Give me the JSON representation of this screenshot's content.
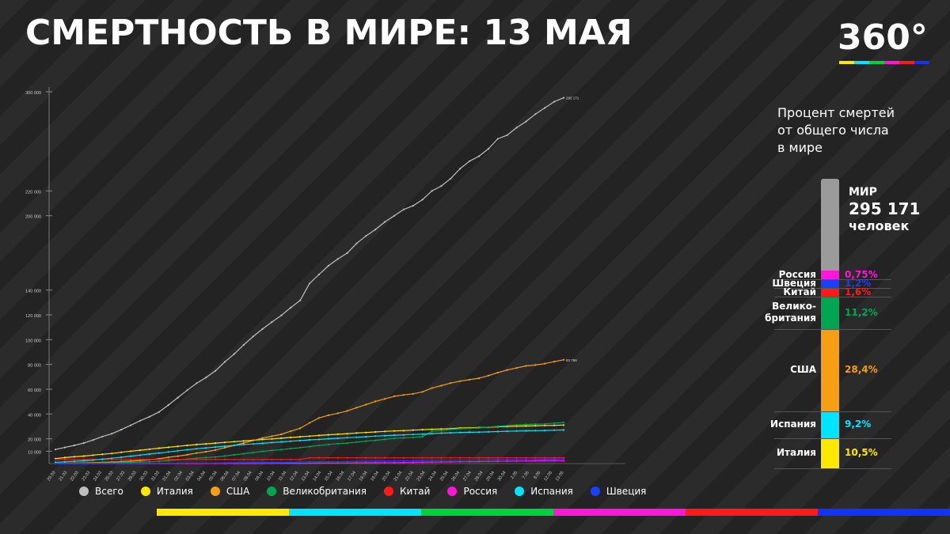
{
  "title": "СМЕРТНОСТЬ В МИРЕ: 13 МАЯ",
  "logo": "360°",
  "brand_colors": [
    "#ffe800",
    "#00e5ff",
    "#00d23c",
    "#ff16d6",
    "#ff1a1a",
    "#1133ff"
  ],
  "chart_data": {
    "type": "line",
    "title": "СМЕРТНОСТЬ В МИРЕ: 13 МАЯ",
    "x": [
      "20.03",
      "21.03",
      "22.03",
      "23.03",
      "24.03",
      "25.03",
      "26.03",
      "27.03",
      "28.03",
      "29.03",
      "30.03",
      "31.03",
      "01.04",
      "02.04",
      "03.04",
      "04.04",
      "05.04",
      "06.04",
      "07.04",
      "08.04",
      "09.04",
      "10.04",
      "11.04",
      "12.04",
      "13.04",
      "14.04",
      "15.04",
      "16.04",
      "17.04",
      "18.04",
      "19.04",
      "20.04",
      "21.04",
      "22.04",
      "23.04",
      "24.04",
      "25.04",
      "26.04",
      "27.04",
      "28.04",
      "29.04",
      "30.04",
      "01.05",
      "02.05",
      "03.05",
      "04.05",
      "05.05",
      "06.05",
      "07.05",
      "08.05",
      "09.05",
      "10.05",
      "11.05",
      "12.05",
      "13.05"
    ],
    "x_tick_labels": [
      "20.03",
      "21.03",
      "22.03",
      "23.03",
      "24.03",
      "25.03",
      "27.03",
      "29.03",
      "30.03",
      "31.03",
      "01.04",
      "02.04",
      "03.04",
      "04.04",
      "05.04",
      "06.04",
      "07.04",
      "08.04",
      "09.04",
      "10.04",
      "11.04",
      "12.04",
      "13.04",
      "14.04",
      "15.04",
      "16.04",
      "17.04",
      "18.04",
      "19.04",
      "20.04",
      "21.04",
      "22.04",
      "23.04",
      "24.04",
      "25.04",
      "26.04",
      "27.04",
      "28.04",
      "29.04",
      "30.04",
      "2.05",
      "7.05",
      "8.05",
      "12.05",
      "13.05"
    ],
    "y_ticks": [
      10000,
      20000,
      40000,
      60000,
      80000,
      100000,
      120000,
      140000,
      200000,
      220000,
      300000
    ],
    "y_tick_labels": [
      "10 000",
      "20 000",
      "40 000",
      "60 000",
      "80 000",
      "100 000",
      "120 000",
      "140 000",
      "200 000",
      "220 000",
      "300 000"
    ],
    "ylim": [
      0,
      300000
    ],
    "grid": false,
    "legend_position": "bottom",
    "series": [
      {
        "name": "Всего",
        "color": "#bfbfbf",
        "values": [
          11386,
          13024,
          14658,
          16514,
          19039,
          21831,
          24105,
          27366,
          30882,
          34622,
          37882,
          41632,
          47245,
          53262,
          59168,
          64789,
          69464,
          74824,
          82074,
          88477,
          95716,
          102538,
          108593,
          114222,
          119542,
          125826,
          131611,
          145344,
          152551,
          159578,
          165043,
          169849,
          177612,
          183719,
          188901,
          195000,
          200000,
          205000,
          208000,
          213000,
          220000,
          224000,
          230000,
          238000,
          244000,
          248000,
          254000,
          262000,
          265000,
          271000,
          276000,
          282000,
          287000,
          292000,
          295171
        ]
      },
      {
        "name": "Италия",
        "color": "#ffe800",
        "values": [
          4032,
          4825,
          5476,
          6077,
          6820,
          7503,
          8165,
          9134,
          10023,
          10779,
          11591,
          12428,
          13155,
          13915,
          14681,
          15362,
          15887,
          16523,
          17127,
          17669,
          18279,
          18849,
          19468,
          19899,
          20465,
          21067,
          21645,
          22170,
          22745,
          23227,
          23660,
          24114,
          24648,
          25085,
          25549,
          25969,
          26384,
          26644,
          26977,
          27359,
          27682,
          27967,
          28236,
          28710,
          28884,
          29079,
          29315,
          29684,
          29958,
          30201,
          30395,
          30560,
          30739,
          30911,
          31106
        ]
      },
      {
        "name": "США",
        "color": "#f79e14",
        "values": [
          243,
          350,
          471,
          600,
          800,
          1050,
          1300,
          1600,
          2000,
          2500,
          3100,
          3900,
          5100,
          6000,
          7100,
          8500,
          9600,
          10900,
          12800,
          14700,
          16600,
          18600,
          20600,
          22100,
          23600,
          26100,
          28500,
          32900,
          36800,
          39000,
          40600,
          42500,
          45100,
          47600,
          50200,
          52200,
          54300,
          55400,
          56300,
          57900,
          60900,
          62900,
          65000,
          66500,
          67700,
          68900,
          71000,
          73400,
          75500,
          77200,
          78800,
          79500,
          80700,
          82300,
          83766
        ]
      },
      {
        "name": "Великобритания",
        "color": "#00a651",
        "values": [
          177,
          233,
          281,
          335,
          422,
          465,
          578,
          759,
          1019,
          1228,
          1408,
          1789,
          2352,
          2921,
          3605,
          4313,
          4934,
          5373,
          6159,
          7097,
          7978,
          8958,
          9875,
          10612,
          11329,
          12107,
          12868,
          13729,
          14576,
          15464,
          16060,
          16509,
          17337,
          18100,
          18738,
          19506,
          20319,
          20732,
          21092,
          21678,
          26097,
          26771,
          27510,
          28131,
          28446,
          28734,
          29427,
          30076,
          30615,
          31241,
          31587,
          31855,
          32065,
          32692,
          33186
        ]
      },
      {
        "name": "Китай",
        "color": "#ff1a1a",
        "values": [
          3248,
          3255,
          3261,
          3270,
          3277,
          3281,
          3285,
          3291,
          3295,
          3300,
          3304,
          3309,
          3316,
          3322,
          3326,
          3330,
          3331,
          3333,
          3335,
          3336,
          3337,
          3339,
          3339,
          3341,
          3341,
          3342,
          3342,
          4632,
          4632,
          4632,
          4632,
          4632,
          4632,
          4632,
          4632,
          4632,
          4633,
          4633,
          4633,
          4633,
          4633,
          4633,
          4633,
          4633,
          4633,
          4633,
          4633,
          4633,
          4633,
          4633,
          4633,
          4633,
          4633,
          4633,
          4633
        ]
      },
      {
        "name": "Россия",
        "color": "#ff16d6",
        "values": [
          1,
          1,
          1,
          1,
          1,
          1,
          3,
          4,
          8,
          9,
          17,
          24,
          30,
          34,
          43,
          47,
          58,
          63,
          76,
          94,
          106,
          130,
          148,
          170,
          198,
          232,
          273,
          313,
          361,
          405,
          456,
          513,
          555,
          615,
          681,
          747,
          794,
          867,
          972,
          1073,
          1169,
          1280,
          1356,
          1451,
          1537,
          1625,
          1723,
          1827,
          1915,
          2009,
          2116,
          2212,
          2305,
          2418,
          2212
        ]
      },
      {
        "name": "Испания",
        "color": "#00e5ff",
        "values": [
          1093,
          1381,
          1772,
          2311,
          2808,
          3647,
          4365,
          5138,
          5982,
          6803,
          7716,
          8464,
          9387,
          10348,
          11198,
          11947,
          12641,
          13341,
          14045,
          14792,
          15447,
          15843,
          16353,
          16972,
          17489,
          18056,
          18579,
          19130,
          19478,
          20043,
          20453,
          20852,
          21282,
          21717,
          22157,
          22524,
          22902,
          23190,
          23521,
          23822,
          24275,
          24543,
          24824,
          25100,
          25264,
          25428,
          25613,
          25857,
          26070,
          26299,
          26478,
          26621,
          26744,
          26920,
          27104
        ]
      },
      {
        "name": "Швеция",
        "color": "#1a3fff",
        "values": [
          20,
          21,
          25,
          28,
          36,
          62,
          77,
          105,
          110,
          146,
          180,
          239,
          282,
          308,
          358,
          373,
          401,
          477,
          591,
          687,
          793,
          870,
          887,
          899,
          919,
          1033,
          1203,
          1333,
          1400,
          1511,
          1540,
          1580,
          1765,
          1937,
          2021,
          2152,
          2194,
          2274,
          2355,
          2462,
          2586,
          2653,
          2679,
          2769,
          2854,
          2941,
          3040,
          3175,
          3220,
          3256,
          3313,
          3338,
          3460,
          3529,
          3646
        ]
      }
    ]
  },
  "legend": [
    "Всего",
    "Италия",
    "США",
    "Великобритания",
    "Китай",
    "Россия",
    "Испания",
    "Швеция"
  ],
  "side_panel": {
    "title": "Процент смертей\nот общего числа\nв мире",
    "world_label": "МИР",
    "world_value": "295 171",
    "world_unit": "человек",
    "segments": [
      {
        "name": "Россия",
        "value": "0,75%",
        "share": 0.75,
        "color": "#ff16d6"
      },
      {
        "name": "Швеция",
        "value": "1,2%",
        "share": 1.2,
        "color": "#1a3fff"
      },
      {
        "name": "Китай",
        "value": "1,6%",
        "share": 1.6,
        "color": "#ff1a1a"
      },
      {
        "name": "Велико-\nбритания",
        "value": "11,2%",
        "share": 11.2,
        "color": "#00a651"
      },
      {
        "name": "США",
        "value": "28,4%",
        "share": 28.4,
        "color": "#f79e14"
      },
      {
        "name": "Испания",
        "value": "9,2%",
        "share": 9.2,
        "color": "#00e5ff"
      },
      {
        "name": "Италия",
        "value": "10,5%",
        "share": 10.5,
        "color": "#ffe800"
      }
    ]
  }
}
